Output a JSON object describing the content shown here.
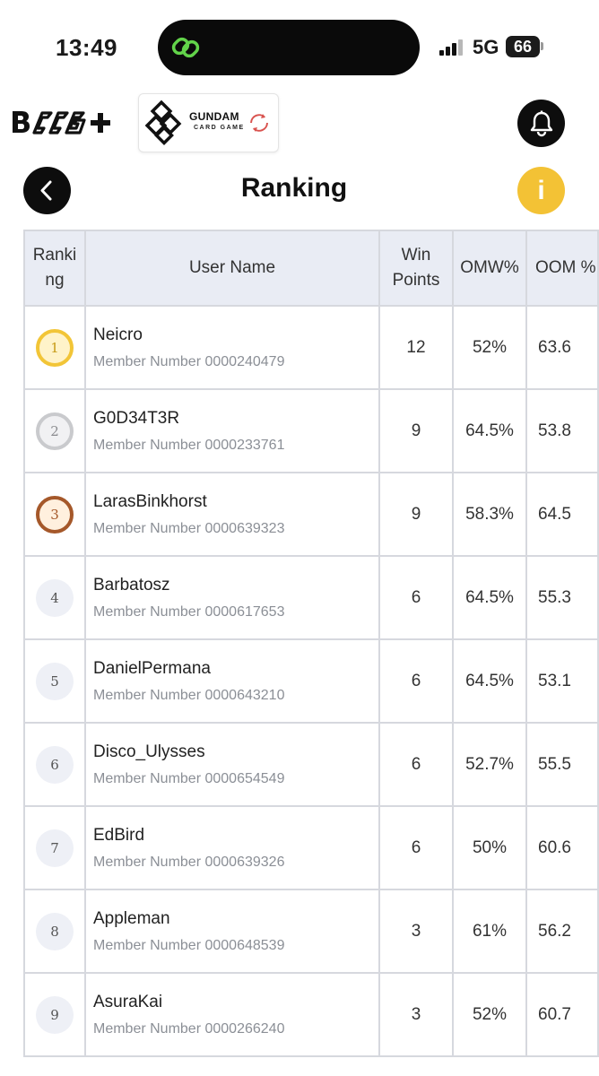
{
  "status": {
    "time": "13:49",
    "network": "5G",
    "battery": "66"
  },
  "header": {
    "gundam_title": "GUNDAM",
    "gundam_sub": "CARD GAME",
    "page_title": "Ranking",
    "info_label": "i"
  },
  "table": {
    "headers": {
      "rank": "Ranki ng",
      "user": "User Name",
      "win": "Win Points",
      "omw": "OMW%",
      "oomw": "OOM %"
    },
    "rows": [
      {
        "rank": "1",
        "name": "Neicro",
        "member": "Member Number 0000240479",
        "win": "12",
        "omw": "52%",
        "oomw": "63.6"
      },
      {
        "rank": "2",
        "name": "G0D34T3R",
        "member": "Member Number 0000233761",
        "win": "9",
        "omw": "64.5%",
        "oomw": "53.8"
      },
      {
        "rank": "3",
        "name": "LarasBinkhorst",
        "member": "Member Number 0000639323",
        "win": "9",
        "omw": "58.3%",
        "oomw": "64.5"
      },
      {
        "rank": "4",
        "name": "Barbatosz",
        "member": "Member Number 0000617653",
        "win": "6",
        "omw": "64.5%",
        "oomw": "55.3"
      },
      {
        "rank": "5",
        "name": "DanielPermana",
        "member": "Member Number 0000643210",
        "win": "6",
        "omw": "64.5%",
        "oomw": "53.1"
      },
      {
        "rank": "6",
        "name": "Disco_Ulysses",
        "member": "Member Number 0000654549",
        "win": "6",
        "omw": "52.7%",
        "oomw": "55.5"
      },
      {
        "rank": "7",
        "name": "EdBird",
        "member": "Member Number 0000639326",
        "win": "6",
        "omw": "50%",
        "oomw": "60.6"
      },
      {
        "rank": "8",
        "name": "Appleman",
        "member": "Member Number 0000648539",
        "win": "3",
        "omw": "61%",
        "oomw": "56.2"
      },
      {
        "rank": "9",
        "name": "AsuraKai",
        "member": "Member Number 0000266240",
        "win": "3",
        "omw": "52%",
        "oomw": "60.7"
      }
    ]
  },
  "colors": {
    "accent_info": "#f3c235",
    "header_bg": "#e9ecf4",
    "border": "#d6d8de"
  },
  "icons": [
    "link-icon",
    "signal-icon",
    "bcg-plus-logo",
    "gundam-logo",
    "reload-icon",
    "bell-icon",
    "back-arrow-icon",
    "info-icon",
    "medal-icon"
  ]
}
